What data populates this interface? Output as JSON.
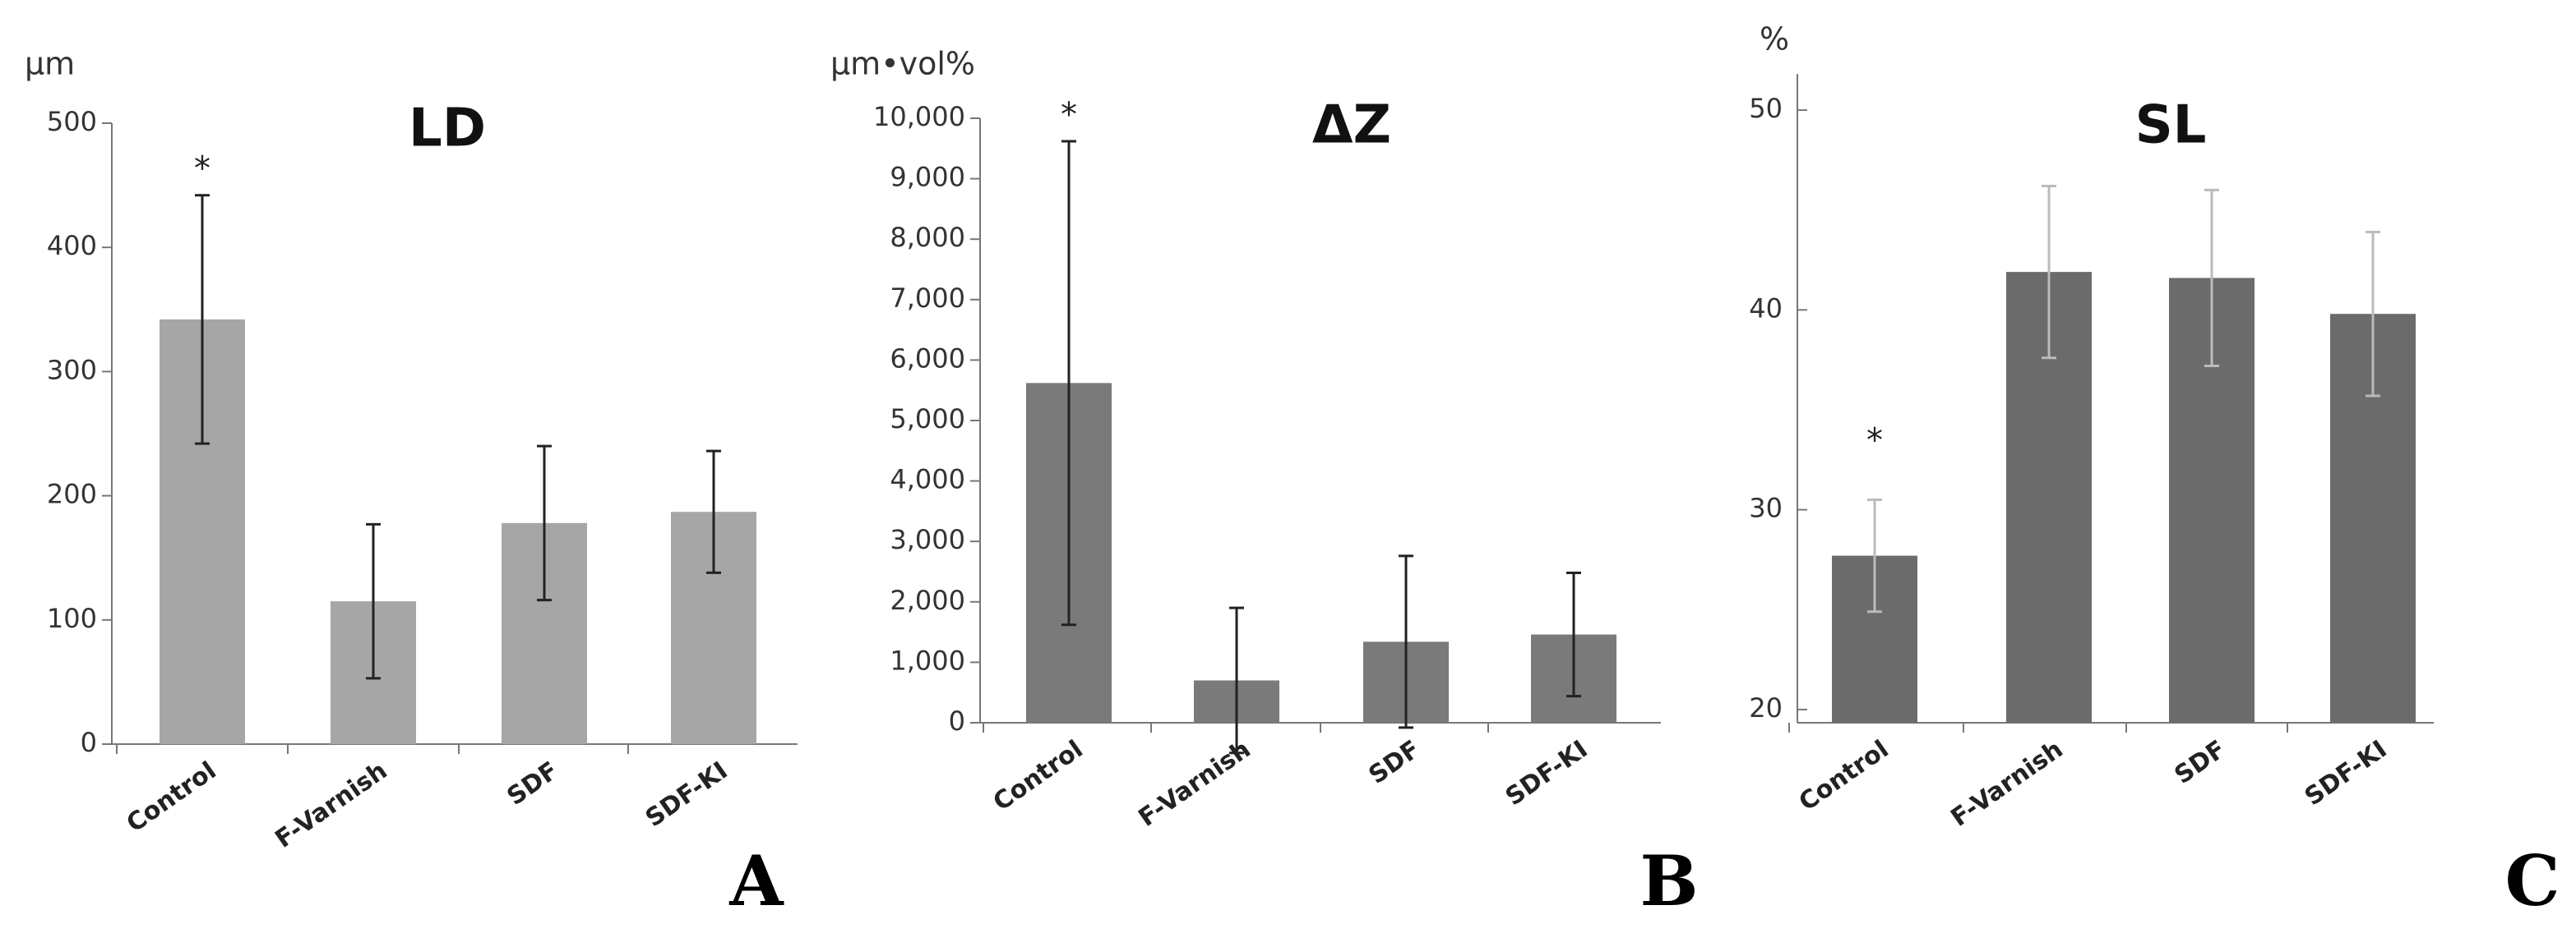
{
  "chart_data": [
    {
      "type": "bar",
      "title": "LD",
      "y_unit": "µm",
      "panel": "A",
      "annotation": "*",
      "categories": [
        "Control",
        "F-Varnish",
        "SDF",
        "SDF-KI"
      ],
      "values": [
        342,
        115,
        178,
        187
      ],
      "errors": [
        100,
        62,
        62,
        49
      ],
      "color": "#a6a6a6",
      "error_color": "#222222",
      "ylim": [
        0,
        500
      ],
      "yticks": [
        0,
        100,
        200,
        300,
        400,
        500
      ]
    },
    {
      "type": "bar",
      "title": "ΔZ",
      "y_unit": "µm•vol%",
      "panel": "B",
      "annotation": "*",
      "categories": [
        "Control",
        "F-Varnish",
        "SDF",
        "SDF-KI"
      ],
      "values": [
        5620,
        700,
        1340,
        1460
      ],
      "errors": [
        4000,
        1200,
        1420,
        1020
      ],
      "color": "#7a7a7a",
      "error_color": "#222222",
      "ylim": [
        0,
        10000
      ],
      "yticks": [
        0,
        {
          "value": 1000,
          "label": "1,000"
        },
        {
          "value": 2000,
          "label": "2,000"
        },
        {
          "value": 3000,
          "label": "3,000"
        },
        {
          "value": 4000,
          "label": "4,000"
        },
        {
          "value": 5000,
          "label": "5,000"
        },
        {
          "value": 6000,
          "label": "6,000"
        },
        {
          "value": 7000,
          "label": "7,000"
        },
        {
          "value": 8000,
          "label": "8,000"
        },
        {
          "value": 9000,
          "label": "9,000"
        },
        {
          "value": 10000,
          "label": "10,000"
        }
      ]
    },
    {
      "type": "bar",
      "title": "SL",
      "y_unit": "%",
      "panel": "C",
      "annotation": "*",
      "categories": [
        "Control",
        "F-Varnish",
        "SDF",
        "SDF-KI"
      ],
      "values": [
        27.7,
        41.9,
        41.6,
        39.8
      ],
      "errors": [
        2.8,
        4.3,
        4.4,
        4.1
      ],
      "color": "#6b6b6b",
      "error_color": "#bbbbbb",
      "ylim": [
        19.34,
        51.81
      ],
      "yticks": [
        20,
        30,
        40,
        50
      ]
    }
  ]
}
